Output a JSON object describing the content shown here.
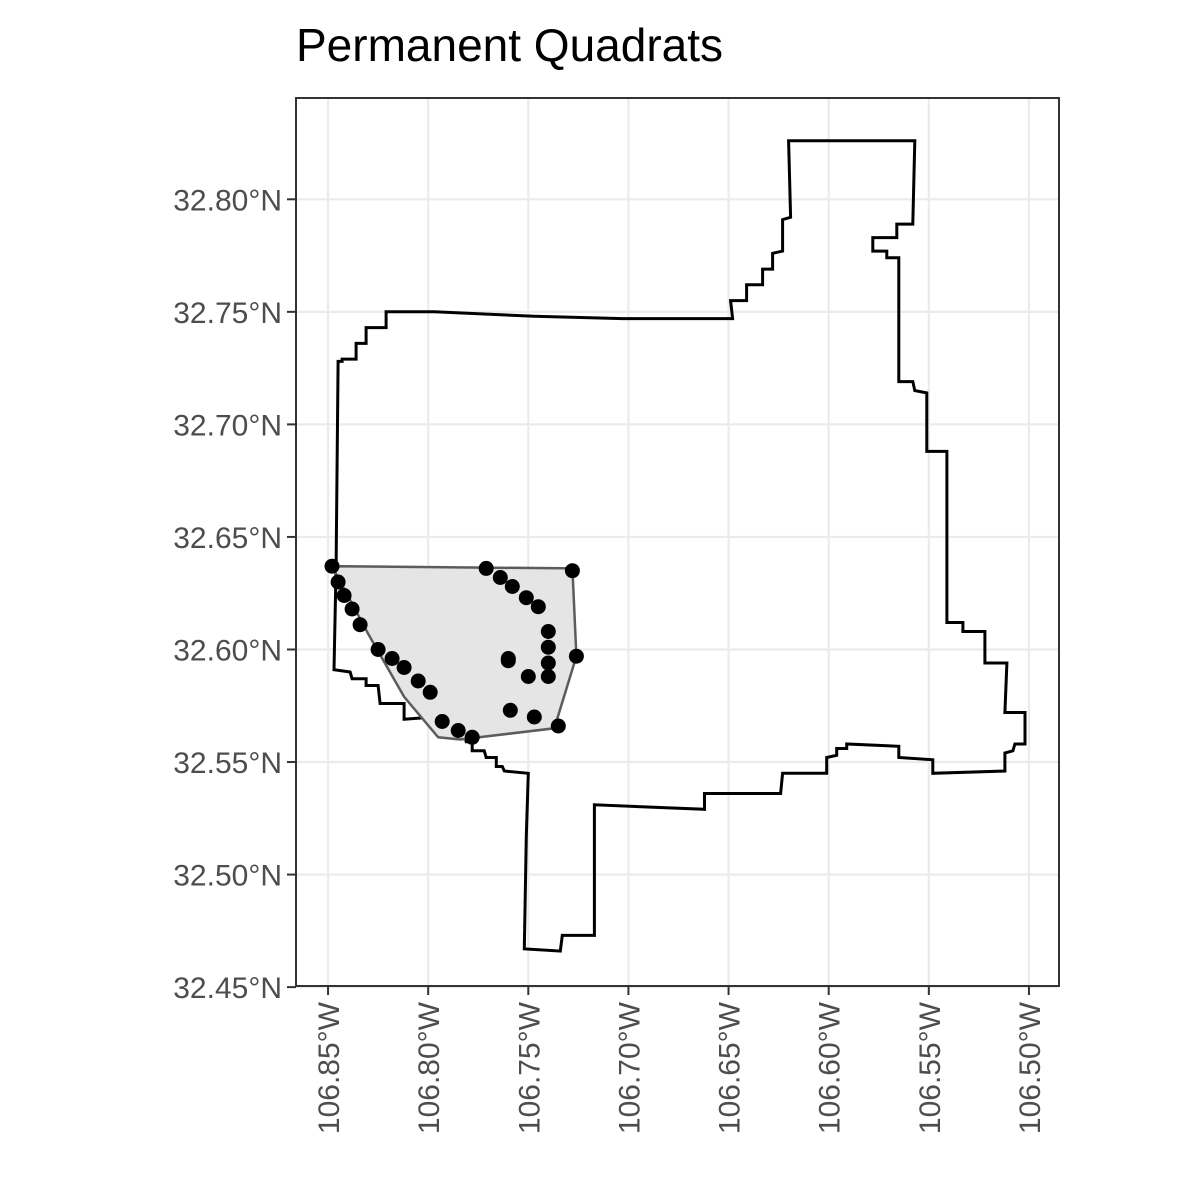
{
  "title": "Permanent Quadrats",
  "chart_data": {
    "type": "map",
    "title": "Permanent Quadrats",
    "xlabel": "",
    "ylabel": "",
    "xlim": [
      -106.866,
      -106.485
    ],
    "ylim": [
      32.4505,
      32.845
    ],
    "grid": true,
    "x_ticks": [
      {
        "value": -106.85,
        "label": "106.85°W"
      },
      {
        "value": -106.8,
        "label": "106.80°W"
      },
      {
        "value": -106.75,
        "label": "106.75°W"
      },
      {
        "value": -106.7,
        "label": "106.70°W"
      },
      {
        "value": -106.65,
        "label": "106.65°W"
      },
      {
        "value": -106.6,
        "label": "106.60°W"
      },
      {
        "value": -106.55,
        "label": "106.55°W"
      },
      {
        "value": -106.5,
        "label": "106.50°W"
      }
    ],
    "y_ticks": [
      {
        "value": 32.45,
        "label": "32.45°N"
      },
      {
        "value": 32.5,
        "label": "32.50°N"
      },
      {
        "value": 32.55,
        "label": "32.55°N"
      },
      {
        "value": 32.6,
        "label": "32.60°N"
      },
      {
        "value": 32.65,
        "label": "32.65°N"
      },
      {
        "value": 32.7,
        "label": "32.70°N"
      },
      {
        "value": 32.75,
        "label": "32.75°N"
      },
      {
        "value": 32.8,
        "label": "32.80°N"
      }
    ],
    "boundary": {
      "stroke": "#000000",
      "coords": [
        [
          -106.846,
          32.637
        ],
        [
          -106.847,
          32.591
        ],
        [
          -106.839,
          32.59
        ],
        [
          -106.838,
          32.587
        ],
        [
          -106.831,
          32.587
        ],
        [
          -106.831,
          32.584
        ],
        [
          -106.825,
          32.584
        ],
        [
          -106.824,
          32.576
        ],
        [
          -106.812,
          32.576
        ],
        [
          -106.812,
          32.569
        ],
        [
          -106.797,
          32.57
        ],
        [
          -106.797,
          32.566
        ],
        [
          -106.787,
          32.565
        ],
        [
          -106.787,
          32.563
        ],
        [
          -106.782,
          32.563
        ],
        [
          -106.781,
          32.559
        ],
        [
          -106.778,
          32.559
        ],
        [
          -106.778,
          32.555
        ],
        [
          -106.772,
          32.555
        ],
        [
          -106.771,
          32.552
        ],
        [
          -106.766,
          32.552
        ],
        [
          -106.766,
          32.548
        ],
        [
          -106.763,
          32.548
        ],
        [
          -106.762,
          32.546
        ],
        [
          -106.75,
          32.545
        ],
        [
          -106.751,
          32.517
        ],
        [
          -106.752,
          32.467
        ],
        [
          -106.734,
          32.466
        ],
        [
          -106.733,
          32.473
        ],
        [
          -106.717,
          32.473
        ],
        [
          -106.717,
          32.531
        ],
        [
          -106.662,
          32.529
        ],
        [
          -106.662,
          32.536
        ],
        [
          -106.624,
          32.536
        ],
        [
          -106.623,
          32.545
        ],
        [
          -106.601,
          32.545
        ],
        [
          -106.601,
          32.552
        ],
        [
          -106.596,
          32.553
        ],
        [
          -106.596,
          32.556
        ],
        [
          -106.591,
          32.556
        ],
        [
          -106.591,
          32.558
        ],
        [
          -106.565,
          32.557
        ],
        [
          -106.565,
          32.552
        ],
        [
          -106.548,
          32.551
        ],
        [
          -106.548,
          32.545
        ],
        [
          -106.512,
          32.546
        ],
        [
          -106.512,
          32.554
        ],
        [
          -106.508,
          32.555
        ],
        [
          -106.507,
          32.558
        ],
        [
          -106.502,
          32.558
        ],
        [
          -106.502,
          32.572
        ],
        [
          -106.512,
          32.572
        ],
        [
          -106.511,
          32.594
        ],
        [
          -106.522,
          32.594
        ],
        [
          -106.522,
          32.608
        ],
        [
          -106.533,
          32.608
        ],
        [
          -106.533,
          32.612
        ],
        [
          -106.541,
          32.612
        ],
        [
          -106.541,
          32.688
        ],
        [
          -106.551,
          32.688
        ],
        [
          -106.551,
          32.714
        ],
        [
          -106.557,
          32.715
        ],
        [
          -106.558,
          32.719
        ],
        [
          -106.565,
          32.719
        ],
        [
          -106.565,
          32.774
        ],
        [
          -106.571,
          32.774
        ],
        [
          -106.571,
          32.777
        ],
        [
          -106.578,
          32.777
        ],
        [
          -106.578,
          32.783
        ],
        [
          -106.566,
          32.783
        ],
        [
          -106.566,
          32.789
        ],
        [
          -106.558,
          32.789
        ],
        [
          -106.557,
          32.826
        ],
        [
          -106.62,
          32.826
        ],
        [
          -106.619,
          32.792
        ],
        [
          -106.623,
          32.791
        ],
        [
          -106.623,
          32.777
        ],
        [
          -106.628,
          32.776
        ],
        [
          -106.628,
          32.769
        ],
        [
          -106.633,
          32.769
        ],
        [
          -106.633,
          32.762
        ],
        [
          -106.641,
          32.762
        ],
        [
          -106.641,
          32.755
        ],
        [
          -106.649,
          32.755
        ],
        [
          -106.648,
          32.747
        ],
        [
          -106.703,
          32.747
        ],
        [
          -106.747,
          32.748
        ],
        [
          -106.797,
          32.75
        ],
        [
          -106.821,
          32.75
        ],
        [
          -106.821,
          32.743
        ],
        [
          -106.831,
          32.743
        ],
        [
          -106.831,
          32.736
        ],
        [
          -106.836,
          32.736
        ],
        [
          -106.836,
          32.729
        ],
        [
          -106.843,
          32.729
        ],
        [
          -106.843,
          32.728
        ],
        [
          -106.845,
          32.728
        ],
        [
          -106.846,
          32.637
        ]
      ]
    },
    "hull": {
      "fill": "#e5e5e5",
      "stroke": "#5c5c5c",
      "coords": [
        [
          -106.848,
          32.637
        ],
        [
          -106.83,
          32.607
        ],
        [
          -106.812,
          32.579
        ],
        [
          -106.795,
          32.561
        ],
        [
          -106.784,
          32.56
        ],
        [
          -106.737,
          32.565
        ],
        [
          -106.726,
          32.597
        ],
        [
          -106.728,
          32.636
        ],
        [
          -106.848,
          32.637
        ]
      ]
    },
    "points": [
      [
        -106.848,
        32.637
      ],
      [
        -106.845,
        32.63
      ],
      [
        -106.842,
        32.624
      ],
      [
        -106.838,
        32.618
      ],
      [
        -106.834,
        32.611
      ],
      [
        -106.825,
        32.6
      ],
      [
        -106.818,
        32.596
      ],
      [
        -106.812,
        32.592
      ],
      [
        -106.805,
        32.586
      ],
      [
        -106.799,
        32.581
      ],
      [
        -106.793,
        32.568
      ],
      [
        -106.785,
        32.564
      ],
      [
        -106.778,
        32.561
      ],
      [
        -106.771,
        32.636
      ],
      [
        -106.764,
        32.632
      ],
      [
        -106.758,
        32.628
      ],
      [
        -106.751,
        32.623
      ],
      [
        -106.745,
        32.619
      ],
      [
        -106.74,
        32.608
      ],
      [
        -106.74,
        32.601
      ],
      [
        -106.74,
        32.594
      ],
      [
        -106.74,
        32.588
      ],
      [
        -106.726,
        32.597
      ],
      [
        -106.728,
        32.635
      ],
      [
        -106.76,
        32.596
      ],
      [
        -106.76,
        32.595
      ],
      [
        -106.75,
        32.588
      ],
      [
        -106.747,
        32.57
      ],
      [
        -106.759,
        32.573
      ],
      [
        -106.735,
        32.566
      ]
    ]
  }
}
